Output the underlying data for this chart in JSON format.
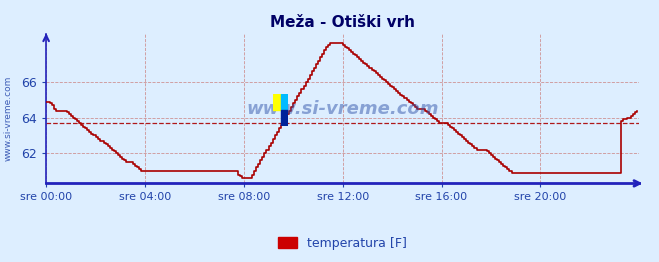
{
  "title": "Meža - Otiški vrh",
  "legend_label": "temperatura [F]",
  "legend_color": "#cc0000",
  "bg_color": "#ddeeff",
  "line_color": "#aa0000",
  "axis_color": "#2222bb",
  "grid_color": "#cc8888",
  "tick_label_color": "#2244aa",
  "title_color": "#000066",
  "watermark_text": "www.si-vreme.com",
  "watermark_color": "#3355aa",
  "side_label": "www.si-vreme.com",
  "ylim": [
    60.3,
    68.7
  ],
  "yticks": [
    62,
    64,
    66
  ],
  "n_points": 288,
  "xtick_positions": [
    0,
    48,
    96,
    144,
    192,
    240
  ],
  "xtick_labels": [
    "sre 00:00",
    "sre 04:00",
    "sre 08:00",
    "sre 12:00",
    "sre 16:00",
    "sre 20:00"
  ],
  "avg_y": 63.7,
  "figsize": [
    6.59,
    2.62
  ],
  "dpi": 100,
  "temps": [
    64.9,
    64.9,
    64.8,
    64.7,
    64.5,
    64.4,
    64.4,
    64.4,
    64.4,
    64.4,
    64.3,
    64.2,
    64.1,
    64.0,
    63.9,
    63.8,
    63.7,
    63.6,
    63.5,
    63.4,
    63.3,
    63.2,
    63.1,
    63.0,
    62.9,
    62.8,
    62.7,
    62.7,
    62.6,
    62.5,
    62.4,
    62.3,
    62.2,
    62.1,
    62.0,
    61.9,
    61.8,
    61.7,
    61.6,
    61.5,
    61.5,
    61.5,
    61.4,
    61.3,
    61.2,
    61.1,
    61.0,
    61.0,
    61.0,
    61.0,
    61.0,
    61.0,
    61.0,
    61.0,
    61.0,
    61.0,
    61.0,
    61.0,
    61.0,
    61.0,
    61.0,
    61.0,
    61.0,
    61.0,
    61.0,
    61.0,
    61.0,
    61.0,
    61.0,
    61.0,
    61.0,
    61.0,
    61.0,
    61.0,
    61.0,
    61.0,
    61.0,
    61.0,
    61.0,
    61.0,
    61.0,
    61.0,
    61.0,
    61.0,
    61.0,
    61.0,
    61.0,
    61.0,
    61.0,
    61.0,
    61.0,
    61.0,
    61.0,
    60.8,
    60.7,
    60.6,
    60.6,
    60.6,
    60.6,
    60.6,
    60.8,
    61.0,
    61.2,
    61.4,
    61.6,
    61.8,
    62.0,
    62.2,
    62.4,
    62.6,
    62.8,
    63.0,
    63.2,
    63.4,
    63.6,
    63.8,
    64.0,
    64.2,
    64.4,
    64.6,
    64.8,
    65.0,
    65.2,
    65.4,
    65.6,
    65.8,
    66.0,
    66.2,
    66.4,
    66.6,
    66.8,
    67.0,
    67.2,
    67.4,
    67.6,
    67.8,
    68.0,
    68.1,
    68.2,
    68.2,
    68.2,
    68.2,
    68.2,
    68.2,
    68.1,
    68.0,
    67.9,
    67.8,
    67.7,
    67.6,
    67.5,
    67.4,
    67.3,
    67.2,
    67.1,
    67.0,
    66.9,
    66.8,
    66.7,
    66.6,
    66.5,
    66.4,
    66.3,
    66.2,
    66.1,
    66.0,
    65.9,
    65.8,
    65.7,
    65.6,
    65.5,
    65.4,
    65.3,
    65.2,
    65.1,
    65.0,
    64.9,
    64.8,
    64.7,
    64.6,
    64.5,
    64.5,
    64.5,
    64.5,
    64.4,
    64.3,
    64.2,
    64.1,
    64.0,
    63.9,
    63.8,
    63.7,
    63.7,
    63.7,
    63.7,
    63.6,
    63.5,
    63.4,
    63.3,
    63.2,
    63.1,
    63.0,
    62.9,
    62.8,
    62.7,
    62.6,
    62.5,
    62.4,
    62.3,
    62.2,
    62.2,
    62.2,
    62.2,
    62.2,
    62.1,
    62.0,
    61.9,
    61.8,
    61.7,
    61.6,
    61.5,
    61.4,
    61.3,
    61.2,
    61.1,
    61.0,
    60.9,
    60.9,
    60.9,
    60.9,
    60.9,
    60.9,
    60.9,
    60.9,
    60.9,
    60.9,
    60.9,
    60.9,
    60.9,
    60.9,
    60.9,
    60.9,
    60.9,
    60.9,
    60.9,
    60.9,
    60.9,
    60.9,
    60.9,
    60.9,
    60.9,
    60.9,
    60.9,
    60.9,
    60.9,
    60.9,
    60.9,
    60.9,
    60.9,
    60.9,
    60.9,
    60.9,
    60.9,
    60.9,
    60.9,
    60.9,
    60.9,
    60.9,
    60.9,
    60.9,
    60.9,
    60.9,
    60.9,
    60.9,
    60.9,
    60.9,
    60.9,
    60.9,
    60.9,
    63.8,
    63.9,
    63.9,
    64.0,
    64.0,
    64.1,
    64.2,
    64.3,
    64.4
  ]
}
